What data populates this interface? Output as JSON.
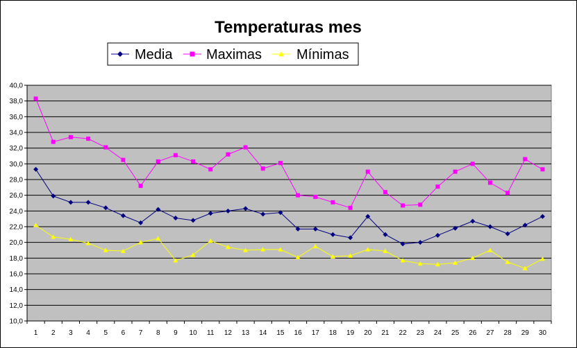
{
  "chart_data": {
    "type": "line",
    "title": "Temperaturas mes",
    "xlabel": "",
    "ylabel": "",
    "x": [
      1,
      2,
      3,
      4,
      5,
      6,
      7,
      8,
      9,
      10,
      11,
      12,
      13,
      14,
      15,
      16,
      17,
      18,
      19,
      20,
      21,
      22,
      23,
      24,
      25,
      26,
      27,
      28,
      29,
      30
    ],
    "ylim": [
      10,
      40
    ],
    "yticks": [
      "10,0",
      "12,0",
      "14,0",
      "16,0",
      "18,0",
      "20,0",
      "22,0",
      "24,0",
      "26,0",
      "28,0",
      "30,0",
      "32,0",
      "34,0",
      "36,0",
      "38,0",
      "40,0"
    ],
    "grid": "horizontal",
    "legend_position": "top",
    "plot_background": "#c0c0c0",
    "series": [
      {
        "name": "Media",
        "color": "#000080",
        "marker": "diamond",
        "values": [
          29.3,
          25.9,
          25.1,
          25.1,
          24.4,
          23.4,
          22.5,
          24.2,
          23.1,
          22.8,
          23.7,
          24.0,
          24.3,
          23.6,
          23.8,
          21.7,
          21.7,
          21.0,
          20.6,
          23.3,
          21.0,
          19.8,
          20.0,
          20.9,
          21.8,
          22.7,
          22.0,
          21.1,
          22.2,
          23.3
        ]
      },
      {
        "name": "Maximas",
        "color": "#ff00ff",
        "marker": "square",
        "values": [
          38.3,
          32.8,
          33.4,
          33.2,
          32.1,
          30.5,
          27.2,
          30.3,
          31.1,
          30.3,
          29.3,
          31.2,
          32.1,
          29.4,
          30.1,
          26.0,
          25.8,
          25.1,
          24.4,
          29.0,
          26.4,
          24.7,
          24.8,
          27.1,
          29.0,
          30.0,
          27.6,
          26.3,
          30.6,
          29.3
        ]
      },
      {
        "name": "Mínimas",
        "color": "#ffff00",
        "marker": "triangle",
        "values": [
          22.2,
          20.7,
          20.4,
          19.9,
          19.0,
          18.9,
          20.0,
          20.5,
          17.7,
          18.4,
          20.2,
          19.4,
          19.0,
          19.1,
          19.1,
          18.1,
          19.5,
          18.2,
          18.3,
          19.1,
          18.9,
          17.7,
          17.3,
          17.2,
          17.4,
          18.0,
          19.0,
          17.5,
          16.7,
          17.9
        ]
      }
    ]
  }
}
